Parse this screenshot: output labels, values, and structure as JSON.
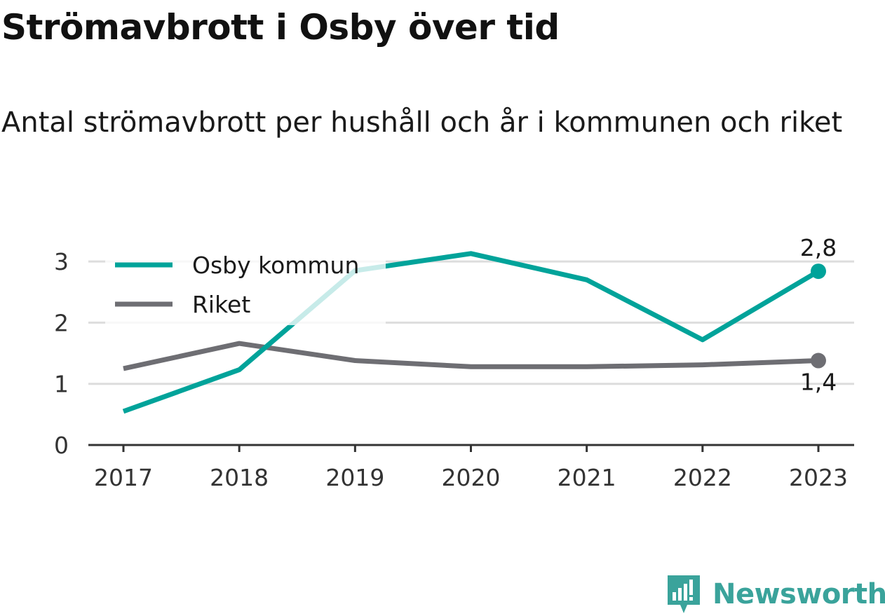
{
  "header": {
    "title": "Strömavbrott i Osby över tid",
    "subtitle": "Antal strömavbrott per hushåll och år i kommunen och riket"
  },
  "brand": {
    "name": "Newsworthy",
    "icon": "newsworthy-logo-icon",
    "color": "#3aa39b"
  },
  "chart_data": {
    "type": "line",
    "title": "Strömavbrott i Osby över tid",
    "subtitle": "Antal strömavbrott per hushåll och år i kommunen och riket",
    "xlabel": "",
    "ylabel": "",
    "x": [
      "2017",
      "2018",
      "2019",
      "2020",
      "2021",
      "2022",
      "2023"
    ],
    "ylim": [
      0,
      3.3
    ],
    "yticks": [
      "0",
      "1",
      "2",
      "3"
    ],
    "grid": true,
    "legend_position": "top-left",
    "series": [
      {
        "name": "Osby kommun",
        "color": "#00a39a",
        "values": [
          0.55,
          1.23,
          2.85,
          3.13,
          2.7,
          1.72,
          2.84
        ],
        "end_label": "2,8"
      },
      {
        "name": "Riket",
        "color": "#6e6e73",
        "values": [
          1.25,
          1.66,
          1.38,
          1.28,
          1.28,
          1.31,
          1.38
        ],
        "end_label": "1,4"
      }
    ]
  }
}
